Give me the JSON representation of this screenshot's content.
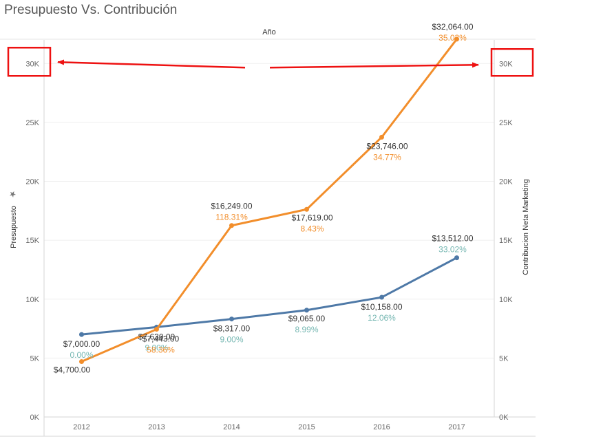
{
  "chart_data": {
    "type": "line",
    "title": "Presupuesto Vs. Contribución",
    "column_header": "Año",
    "categories": [
      "2012",
      "2013",
      "2014",
      "2015",
      "2016",
      "2017"
    ],
    "left_axis": {
      "label": "Presupuesto",
      "ylim": [
        0,
        32000
      ],
      "ticks": [
        0,
        5000,
        10000,
        15000,
        20000,
        25000,
        30000
      ],
      "tick_labels": [
        "0K",
        "5K",
        "10K",
        "15K",
        "20K",
        "25K",
        "30K"
      ]
    },
    "right_axis": {
      "label": "Contribucion Neta Marketing",
      "ylim": [
        0,
        32000
      ],
      "ticks": [
        0,
        5000,
        10000,
        15000,
        20000,
        25000,
        30000
      ],
      "tick_labels": [
        "0K",
        "5K",
        "10K",
        "15K",
        "20K",
        "25K",
        "30K"
      ]
    },
    "series": [
      {
        "name": "Presupuesto",
        "color": "#4e79a7",
        "pct_color": "#76b7b2",
        "values": [
          7000,
          7630,
          8317,
          9065,
          10158,
          13512
        ],
        "labels": [
          "$7,000.00",
          "$7,630.00",
          "$8,317.00",
          "$9,065.00",
          "$10,158.00",
          "$13,512.00"
        ],
        "pct_labels": [
          "0.00%",
          "9.00%",
          "9.00%",
          "8.99%",
          "12.06%",
          "33.02%"
        ]
      },
      {
        "name": "Contribucion Neta Marketing",
        "color": "#f28e2b",
        "pct_color": "#f28e2b",
        "values": [
          4700,
          7443,
          16249,
          17619,
          23746,
          32064
        ],
        "labels": [
          "$4,700.00",
          "$7,443.00",
          "$16,249.00",
          "$17,619.00",
          "$23,746.00",
          "$32,064.00"
        ],
        "pct_labels": [
          "",
          "58.36%",
          "118.31%",
          "8.43%",
          "34.77%",
          "35.03%"
        ]
      }
    ],
    "annotations": {
      "highlight_color": "#ee1111",
      "highlighted_tick": "30K"
    }
  }
}
